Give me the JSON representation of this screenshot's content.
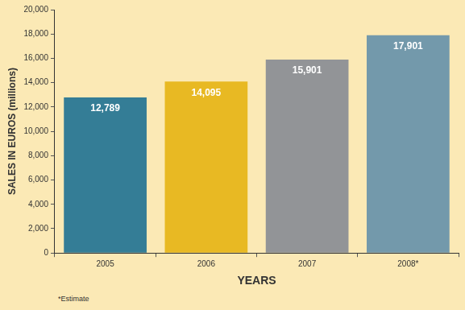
{
  "chart_data": {
    "type": "bar",
    "categories": [
      "2005",
      "2006",
      "2007",
      "2008*"
    ],
    "values": [
      12789,
      14095,
      15901,
      17901
    ],
    "value_labels": [
      "12,789",
      "14,095",
      "15,901",
      "17,901"
    ],
    "data_labels": true,
    "colors": [
      "#347d96",
      "#e8b923",
      "#929497",
      "#7399ab"
    ],
    "x_label": "YEARS",
    "y_label": "SALES IN EUROS (millions)",
    "annotations": [
      "*Estimate"
    ],
    "ylim": [
      0,
      20000
    ],
    "yticks": [
      0,
      {
        "value": 2000,
        "label": "2,000"
      },
      {
        "value": 4000,
        "label": "4,000"
      },
      {
        "value": 6000,
        "label": "6,000"
      },
      {
        "value": 8000,
        "label": "8,000"
      },
      {
        "value": 10000,
        "label": "10,000"
      },
      {
        "value": 12000,
        "label": "12,000"
      },
      {
        "value": 14000,
        "label": "14,000"
      },
      {
        "value": 16000,
        "label": "16,000"
      },
      {
        "value": 18000,
        "label": "18,000"
      },
      {
        "value": 20000,
        "label": "20,000"
      }
    ],
    "grid": false
  }
}
